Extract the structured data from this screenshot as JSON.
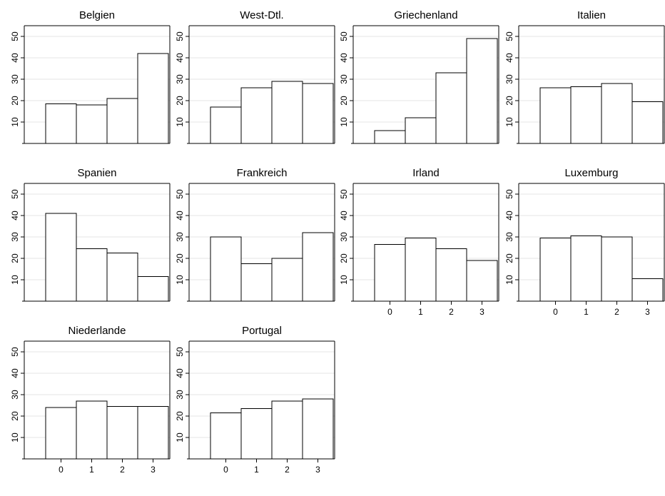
{
  "chart_data": {
    "type": "bar",
    "layout": "small-multiples grid, 4 columns",
    "shared_x_categories": [
      "0",
      "1",
      "2",
      "3"
    ],
    "ylim": [
      0,
      55
    ],
    "y_ticks": [
      10,
      20,
      30,
      40,
      50
    ],
    "grid": "horizontal light gray lines at y ticks",
    "bar_fill": "#ffffff",
    "bar_stroke": "#000000",
    "grid_color": "#e6e6e6",
    "panels": [
      {
        "title": "Belgien",
        "values": [
          18.5,
          18,
          21,
          42
        ]
      },
      {
        "title": "West-Dtl.",
        "values": [
          17,
          26,
          29,
          28
        ]
      },
      {
        "title": "Griechenland",
        "values": [
          6,
          12,
          33,
          49
        ]
      },
      {
        "title": "Italien",
        "values": [
          26,
          26.5,
          28,
          19.5
        ]
      },
      {
        "title": "Spanien",
        "values": [
          41,
          24.5,
          22.5,
          11.5
        ]
      },
      {
        "title": "Frankreich",
        "values": [
          30,
          17.5,
          20,
          32
        ]
      },
      {
        "title": "Irland",
        "values": [
          26.5,
          29.5,
          24.5,
          19
        ]
      },
      {
        "title": "Luxemburg",
        "values": [
          29.5,
          30.5,
          30,
          10.5
        ]
      },
      {
        "title": "Niederlande",
        "values": [
          24,
          27,
          24.5,
          24.5
        ]
      },
      {
        "title": "Portugal",
        "values": [
          21.5,
          23.5,
          27,
          28
        ]
      }
    ]
  }
}
